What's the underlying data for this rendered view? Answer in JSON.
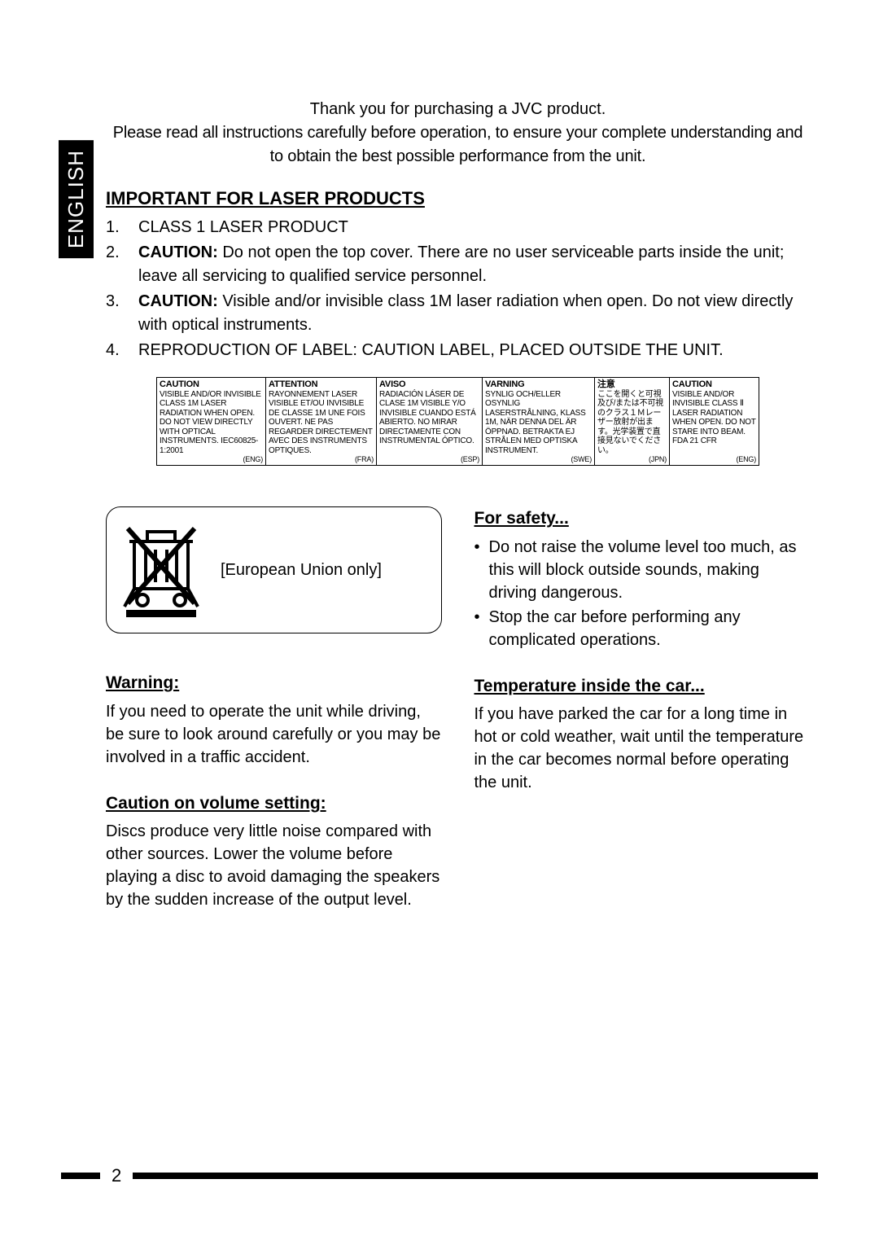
{
  "page": {
    "language_tab": "ENGLISH",
    "page_number": "2"
  },
  "intro": {
    "line1": "Thank you for purchasing a JVC product.",
    "line2": "Please read all instructions carefully before operation, to ensure your complete understanding and to obtain the best possible performance from the unit."
  },
  "laser": {
    "heading": "IMPORTANT FOR LASER PRODUCTS",
    "items": {
      "i1": "CLASS 1 LASER PRODUCT",
      "i2_label": "CAUTION:",
      "i2_text": "  Do not open the top cover. There are no user serviceable parts inside the unit; leave all servicing to qualified service personnel.",
      "i3_label": "CAUTION:",
      "i3_text": "  Visible and/or invisible class 1M laser radiation when open. Do not view directly with optical instruments.",
      "i4": "REPRODUCTION OF LABEL: CAUTION LABEL, PLACED OUTSIDE THE UNIT."
    }
  },
  "label_table": {
    "cols": [
      {
        "head": "CAUTION",
        "body": "VISIBLE AND/OR INVISIBLE CLASS 1M LASER RADIATION WHEN OPEN. DO NOT VIEW DIRECTLY WITH OPTICAL INSTRUMENTS. IEC60825-1:2001",
        "lang": "(ENG)"
      },
      {
        "head": "ATTENTION",
        "body": "RAYONNEMENT LASER VISIBLE ET/OU INVISIBLE DE CLASSE 1M UNE FOIS OUVERT. NE PAS REGARDER DIRECTEMENT AVEC DES INSTRUMENTS OPTIQUES.",
        "lang": "(FRA)"
      },
      {
        "head": "AVISO",
        "body": "RADIACIÓN LÁSER DE CLASE 1M VISIBLE Y/O INVISIBLE CUANDO ESTÁ ABIERTO. NO MIRAR DIRECTAMENTE CON INSTRUMENTAL ÓPTICO.",
        "lang": "(ESP)"
      },
      {
        "head": "VARNING",
        "body": "SYNLIG OCH/ELLER OSYNLIG LASERSTRÅLNING, KLASS 1M, NÄR DENNA DEL ÄR ÖPPNAD. BETRAKTA EJ STRÅLEN MED OPTISKA INSTRUMENT.",
        "lang": "(SWE)"
      },
      {
        "head": "注意",
        "body": "ここを開くと可視及び/または不可視のクラス１Ｍレーザー放射が出ます。光学装置で直接見ないでください。",
        "lang": "(JPN)"
      },
      {
        "head": "CAUTION",
        "body": "VISIBLE AND/OR INVISIBLE CLASS Ⅱ LASER RADIATION WHEN OPEN. DO NOT STARE INTO BEAM. FDA 21 CFR",
        "lang": "(ENG)"
      }
    ]
  },
  "eu_box": {
    "text": "[European Union only]"
  },
  "left": {
    "warning_heading": "Warning:",
    "warning_text": "If you need to operate the unit while driving, be sure to look around carefully or you may be involved in a traffic accident.",
    "volume_heading": "Caution on volume setting:",
    "volume_text": "Discs produce very little noise compared with other sources. Lower the volume before playing a disc to avoid damaging the speakers by the sudden increase of the output level."
  },
  "right": {
    "safety_heading": "For safety...",
    "safety_b1": "Do not raise the volume level too much, as this will block outside sounds, making driving dangerous.",
    "safety_b2": "Stop the car before performing any complicated operations.",
    "temp_heading": "Temperature inside the car...",
    "temp_text": "If you have parked the car for a long time in hot or cold weather, wait until the temperature in the car becomes normal before operating the unit."
  }
}
